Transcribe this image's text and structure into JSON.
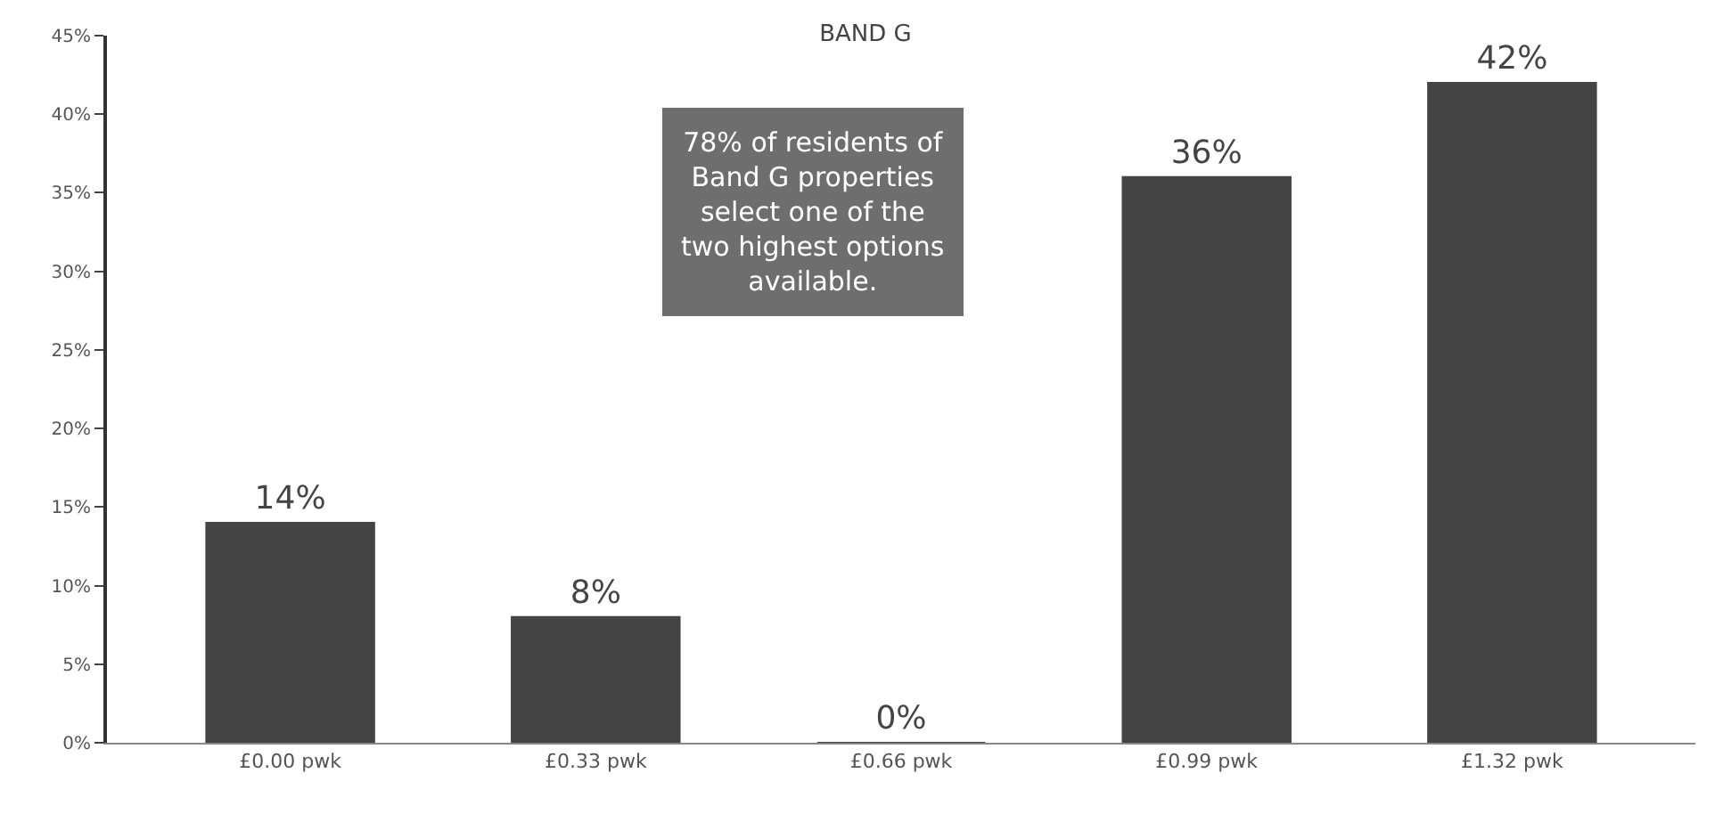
{
  "chart_data": {
    "type": "bar",
    "title": "BAND G",
    "categories": [
      "£0.00 pwk",
      "£0.33 pwk",
      "£0.66 pwk",
      "£0.99 pwk",
      "£1.32 pwk"
    ],
    "values": [
      14,
      8,
      0,
      36,
      42
    ],
    "value_labels": [
      "14%",
      "8%",
      "0%",
      "36%",
      "42%"
    ],
    "color": "#444444",
    "ylim": [
      0,
      45
    ],
    "yticks": [
      {
        "value": 0,
        "label": "0%"
      },
      {
        "value": 5,
        "label": "5%"
      },
      {
        "value": 10,
        "label": "10%"
      },
      {
        "value": 15,
        "label": "15%"
      },
      {
        "value": 20,
        "label": "20%"
      },
      {
        "value": 25,
        "label": "25%"
      },
      {
        "value": 30,
        "label": "30%"
      },
      {
        "value": 35,
        "label": "35%"
      },
      {
        "value": 40,
        "label": "40%"
      },
      {
        "value": 45,
        "label": "45%"
      }
    ],
    "legend": false,
    "annotations": [
      "78% of residents of Band G properties select one of the two highest options available."
    ]
  }
}
